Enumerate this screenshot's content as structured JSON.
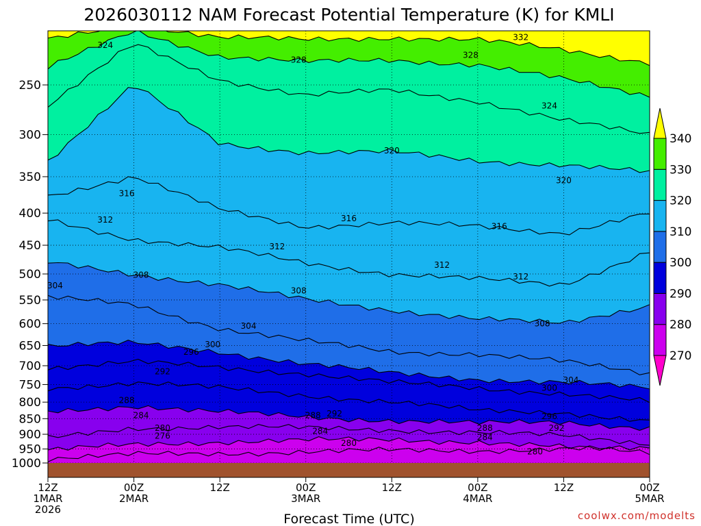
{
  "chart_data": {
    "type": "heatmap",
    "title": "2026030112 NAM Forecast Potential Temperature (K) for KMLI",
    "xlabel": "Forecast Time (UTC)",
    "ylabel": "",
    "yscale": "log-pressure",
    "ylim": [
      1000,
      200
    ],
    "yticks": [
      "250",
      "300",
      "350",
      "400",
      "450",
      "500",
      "550",
      "600",
      "650",
      "700",
      "750",
      "800",
      "850",
      "900",
      "950",
      "1000"
    ],
    "xrange_hours": [
      0,
      84
    ],
    "xticks": [
      {
        "hour": 0,
        "lines": [
          "12Z",
          "1MAR",
          "2026"
        ]
      },
      {
        "hour": 12,
        "lines": [
          "00Z",
          "2MAR"
        ]
      },
      {
        "hour": 24,
        "lines": [
          "12Z"
        ]
      },
      {
        "hour": 36,
        "lines": [
          "00Z",
          "3MAR"
        ]
      },
      {
        "hour": 48,
        "lines": [
          "12Z"
        ]
      },
      {
        "hour": 60,
        "lines": [
          "00Z",
          "4MAR"
        ]
      },
      {
        "hour": 72,
        "lines": [
          "12Z"
        ]
      },
      {
        "hour": 84,
        "lines": [
          "00Z",
          "5MAR"
        ]
      }
    ],
    "colorbar": {
      "ticks": [
        "270",
        "280",
        "290",
        "300",
        "310",
        "320",
        "330",
        "340"
      ],
      "bins": [
        {
          "range": "<270",
          "color": "#ff00cc"
        },
        {
          "range": "270-280",
          "color": "#cc00ee"
        },
        {
          "range": "280-290",
          "color": "#8800ee"
        },
        {
          "range": "290-300",
          "color": "#0000dd"
        },
        {
          "range": "300-310",
          "color": "#1f6ee8"
        },
        {
          "range": "310-320",
          "color": "#18b4f0"
        },
        {
          "range": "320-330",
          "color": "#00f0a0"
        },
        {
          "range": "330-340",
          "color": "#44ee00"
        },
        {
          "range": ">340",
          "color": "#ffff00"
        }
      ]
    },
    "contour_interval_K": 2,
    "isentropes": [
      {
        "theta": 276,
        "p": [
          985,
          970,
          965,
          960,
          955,
          955,
          950,
          950
        ]
      },
      {
        "theta": 280,
        "p": [
          955,
          935,
          925,
          920,
          918,
          925,
          945,
          960
        ]
      },
      {
        "theta": 284,
        "p": [
          915,
          880,
          875,
          880,
          885,
          895,
          905,
          930
        ]
      },
      {
        "theta": 288,
        "p": [
          830,
          810,
          830,
          845,
          855,
          865,
          860,
          880
        ]
      },
      {
        "theta": 292,
        "p": [
          760,
          745,
          760,
          780,
          800,
          825,
          830,
          860
        ]
      },
      {
        "theta": 296,
        "p": [
          705,
          690,
          705,
          720,
          745,
          760,
          775,
          800
        ]
      },
      {
        "theta": 300,
        "p": [
          650,
          645,
          665,
          695,
          720,
          735,
          745,
          760
        ]
      },
      {
        "theta": 304,
        "p": [
          545,
          560,
          610,
          640,
          665,
          670,
          690,
          720
        ]
      },
      {
        "theta": 308,
        "p": [
          480,
          500,
          520,
          550,
          570,
          590,
          600,
          560
        ]
      },
      {
        "theta": 312,
        "p": [
          410,
          440,
          455,
          480,
          500,
          510,
          520,
          460
        ]
      },
      {
        "theta": 316,
        "p": [
          375,
          350,
          395,
          420,
          415,
          420,
          430,
          400
        ]
      },
      {
        "theta": 320,
        "p": [
          330,
          250,
          310,
          320,
          320,
          330,
          335,
          345
        ]
      },
      {
        "theta": 324,
        "p": [
          270,
          215,
          245,
          260,
          255,
          265,
          285,
          300
        ]
      },
      {
        "theta": 328,
        "p": [
          235,
          205,
          225,
          230,
          228,
          232,
          245,
          260
        ]
      },
      {
        "theta": 332,
        "p": [
          212,
          200,
          210,
          212,
          210,
          212,
          220,
          230
        ]
      }
    ],
    "contour_labels": [
      {
        "text": "324",
        "hour": 8,
        "p": 216
      },
      {
        "text": "328",
        "hour": 35,
        "p": 228
      },
      {
        "text": "328",
        "hour": 59,
        "p": 224
      },
      {
        "text": "332",
        "hour": 66,
        "p": 210
      },
      {
        "text": "324",
        "hour": 70,
        "p": 270
      },
      {
        "text": "320",
        "hour": 48,
        "p": 318
      },
      {
        "text": "320",
        "hour": 72,
        "p": 355
      },
      {
        "text": "316",
        "hour": 11,
        "p": 372
      },
      {
        "text": "316",
        "hour": 42,
        "p": 408
      },
      {
        "text": "316",
        "hour": 63,
        "p": 420
      },
      {
        "text": "312",
        "hour": 8,
        "p": 410
      },
      {
        "text": "312",
        "hour": 32,
        "p": 452
      },
      {
        "text": "312",
        "hour": 55,
        "p": 484
      },
      {
        "text": "312",
        "hour": 66,
        "p": 505
      },
      {
        "text": "308",
        "hour": 13,
        "p": 502
      },
      {
        "text": "308",
        "hour": 35,
        "p": 532
      },
      {
        "text": "308",
        "hour": 69,
        "p": 600
      },
      {
        "text": "304",
        "hour": 1,
        "p": 522
      },
      {
        "text": "304",
        "hour": 28,
        "p": 605
      },
      {
        "text": "304",
        "hour": 73,
        "p": 738
      },
      {
        "text": "300",
        "hour": 23,
        "p": 648
      },
      {
        "text": "300",
        "hour": 70,
        "p": 760
      },
      {
        "text": "296",
        "hour": 20,
        "p": 666
      },
      {
        "text": "296",
        "hour": 70,
        "p": 843
      },
      {
        "text": "292",
        "hour": 16,
        "p": 715
      },
      {
        "text": "292",
        "hour": 40,
        "p": 835
      },
      {
        "text": "292",
        "hour": 71,
        "p": 880
      },
      {
        "text": "288",
        "hour": 11,
        "p": 795
      },
      {
        "text": "288",
        "hour": 37,
        "p": 840
      },
      {
        "text": "288",
        "hour": 61,
        "p": 880
      },
      {
        "text": "284",
        "hour": 13,
        "p": 840
      },
      {
        "text": "284",
        "hour": 38,
        "p": 890
      },
      {
        "text": "284",
        "hour": 61,
        "p": 910
      },
      {
        "text": "280",
        "hour": 16,
        "p": 880
      },
      {
        "text": "280",
        "hour": 42,
        "p": 930
      },
      {
        "text": "280",
        "hour": 68,
        "p": 960
      },
      {
        "text": "276",
        "hour": 16,
        "p": 905
      }
    ]
  },
  "credit": "coolwx.com/modelts"
}
